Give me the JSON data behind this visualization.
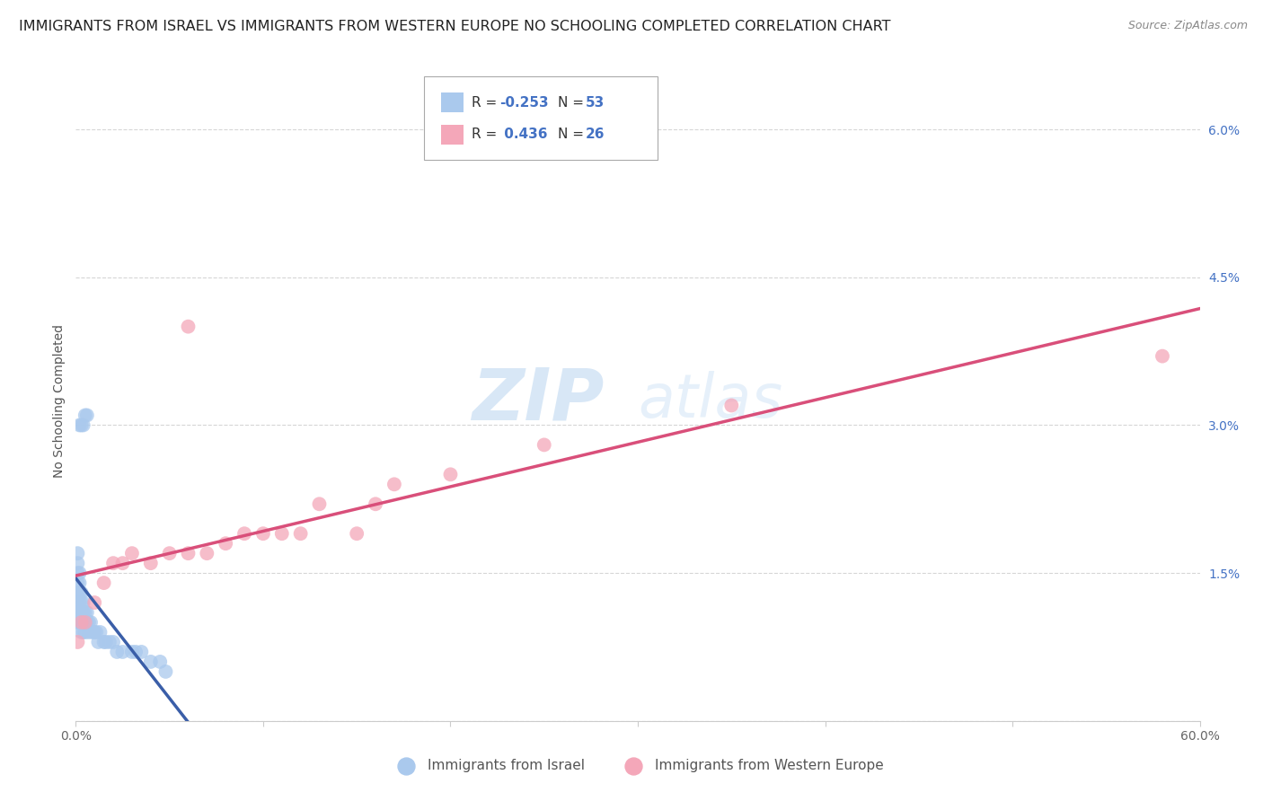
{
  "title": "IMMIGRANTS FROM ISRAEL VS IMMIGRANTS FROM WESTERN EUROPE NO SCHOOLING COMPLETED CORRELATION CHART",
  "source": "Source: ZipAtlas.com",
  "ylabel": "No Schooling Completed",
  "xlim": [
    0.0,
    0.6
  ],
  "ylim": [
    0.0,
    0.065
  ],
  "xticks": [
    0.0,
    0.1,
    0.2,
    0.3,
    0.4,
    0.5,
    0.6
  ],
  "xticklabels": [
    "0.0%",
    "",
    "",
    "",
    "",
    "",
    "60.0%"
  ],
  "yticks": [
    0.0,
    0.015,
    0.03,
    0.045,
    0.06
  ],
  "yticklabels": [
    "",
    "1.5%",
    "3.0%",
    "4.5%",
    "6.0%"
  ],
  "legend_label_blue": "Immigrants from Israel",
  "legend_label_pink": "Immigrants from Western Europe",
  "blue_color": "#aac9ed",
  "pink_color": "#f4a7b9",
  "line_blue": "#3a5ea8",
  "line_pink": "#d94f7a",
  "watermark_zip": "ZIP",
  "watermark_atlas": "atlas",
  "background_color": "#ffffff",
  "blue_scatter_x": [
    0.001,
    0.001,
    0.001,
    0.001,
    0.001,
    0.001,
    0.001,
    0.001,
    0.002,
    0.002,
    0.002,
    0.002,
    0.002,
    0.002,
    0.003,
    0.003,
    0.003,
    0.003,
    0.003,
    0.004,
    0.004,
    0.004,
    0.004,
    0.005,
    0.005,
    0.005,
    0.006,
    0.006,
    0.007,
    0.007,
    0.008,
    0.009,
    0.01,
    0.011,
    0.012,
    0.013,
    0.015,
    0.016,
    0.018,
    0.02,
    0.022,
    0.025,
    0.03,
    0.032,
    0.035,
    0.04,
    0.045,
    0.048,
    0.002,
    0.003,
    0.004,
    0.005,
    0.006
  ],
  "blue_scatter_y": [
    0.01,
    0.011,
    0.012,
    0.013,
    0.014,
    0.015,
    0.016,
    0.017,
    0.01,
    0.011,
    0.012,
    0.013,
    0.014,
    0.015,
    0.009,
    0.01,
    0.011,
    0.012,
    0.013,
    0.009,
    0.01,
    0.011,
    0.012,
    0.009,
    0.01,
    0.011,
    0.01,
    0.011,
    0.009,
    0.01,
    0.01,
    0.009,
    0.009,
    0.009,
    0.008,
    0.009,
    0.008,
    0.008,
    0.008,
    0.008,
    0.007,
    0.007,
    0.007,
    0.007,
    0.007,
    0.006,
    0.006,
    0.005,
    0.03,
    0.03,
    0.03,
    0.031,
    0.031
  ],
  "pink_scatter_x": [
    0.001,
    0.003,
    0.005,
    0.01,
    0.015,
    0.02,
    0.025,
    0.03,
    0.04,
    0.05,
    0.06,
    0.07,
    0.08,
    0.09,
    0.1,
    0.11,
    0.12,
    0.13,
    0.15,
    0.16,
    0.17,
    0.2,
    0.25,
    0.35,
    0.58,
    0.06
  ],
  "pink_scatter_y": [
    0.008,
    0.01,
    0.01,
    0.012,
    0.014,
    0.016,
    0.016,
    0.017,
    0.016,
    0.017,
    0.017,
    0.017,
    0.018,
    0.019,
    0.019,
    0.019,
    0.019,
    0.022,
    0.019,
    0.022,
    0.024,
    0.025,
    0.028,
    0.032,
    0.037,
    0.04
  ],
  "title_fontsize": 11.5,
  "axis_label_fontsize": 10,
  "tick_fontsize": 10,
  "legend_fontsize": 11
}
